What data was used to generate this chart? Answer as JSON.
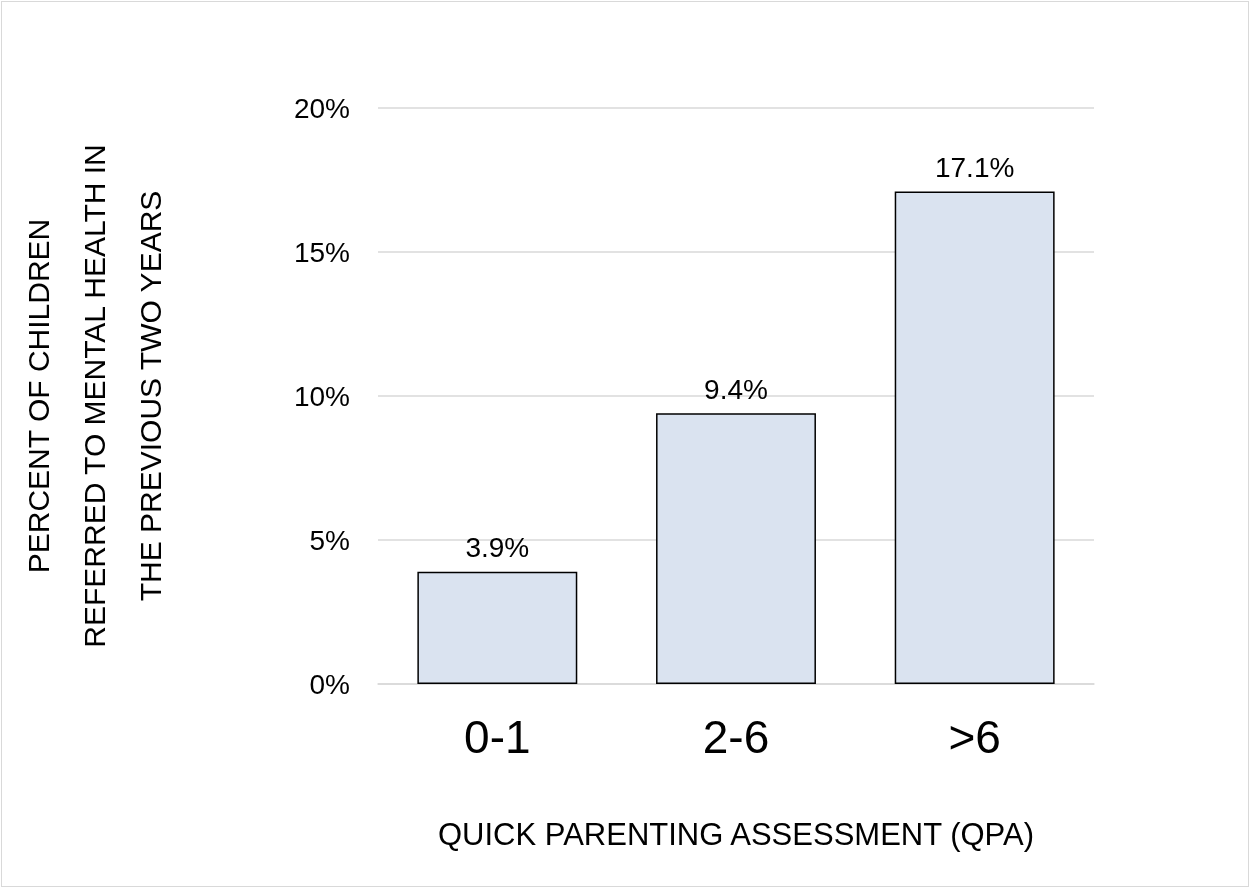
{
  "chart_data": {
    "type": "bar",
    "xlabel": "QUICK PARENTING ASSESSMENT (QPA)",
    "ylabel": "PERCENT OF CHILDREN\nREFERRED TO MENTAL HEALTH IN\nTHE PREVIOUS TWO YEARS",
    "categories": [
      "0-1",
      "2-6",
      ">6"
    ],
    "series": [
      {
        "color": "#dae3f0",
        "values": [
          3.9,
          9.4,
          17.1
        ],
        "value_labels": [
          "3.9%",
          "9.4%",
          "17.1%"
        ]
      }
    ],
    "ylim": [
      0,
      20
    ],
    "yticks": [
      {
        "value": 0,
        "label": "0%"
      },
      {
        "value": 5,
        "label": "5%"
      },
      {
        "value": 10,
        "label": "10%"
      },
      {
        "value": 15,
        "label": "15%"
      },
      {
        "value": 20,
        "label": "20%"
      }
    ],
    "grid": "y"
  }
}
